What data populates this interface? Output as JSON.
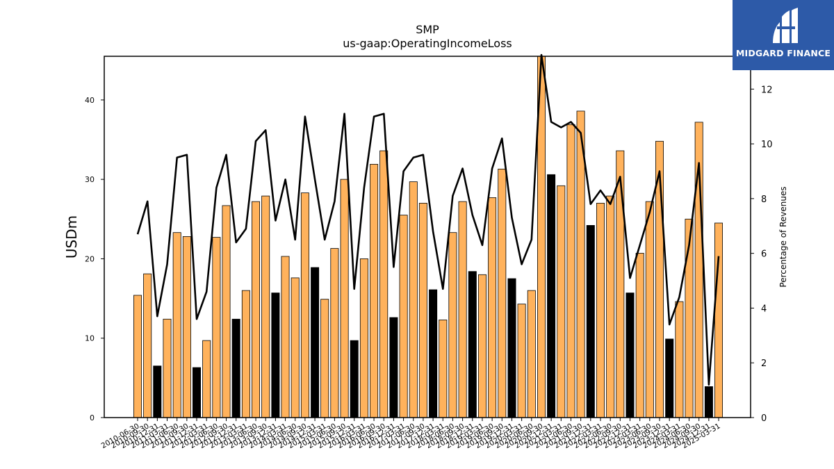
{
  "chart_data": {
    "type": "bar",
    "title": "SMP",
    "subtitle": "us-gaap:OperatingIncomeLoss",
    "ylabel": "USDm",
    "y2label": "Percentage of Revenues",
    "ylim": [
      0,
      45.5
    ],
    "y2lim": [
      0,
      13.2
    ],
    "yticks": [
      0,
      10,
      20,
      30,
      40
    ],
    "y2ticks": [
      0,
      2,
      4,
      6,
      8,
      10,
      12
    ],
    "colors": {
      "bar": "#ffb25c",
      "bar_q4": "#000000",
      "line": "#000000"
    },
    "categories": [
      "2010-06-30",
      "2010-09-30",
      "2010-12-31",
      "2011-03-31",
      "2011-06-30",
      "2011-09-30",
      "2011-12-31",
      "2012-03-31",
      "2012-06-30",
      "2012-09-30",
      "2012-12-31",
      "2013-03-31",
      "2013-06-30",
      "2013-09-30",
      "2013-12-31",
      "2014-03-31",
      "2014-06-30",
      "2014-09-30",
      "2014-12-31",
      "2015-03-31",
      "2015-06-30",
      "2015-09-30",
      "2015-12-31",
      "2016-03-31",
      "2016-06-30",
      "2016-09-30",
      "2016-12-31",
      "2017-03-31",
      "2017-06-30",
      "2017-09-30",
      "2017-12-31",
      "2018-03-31",
      "2018-06-30",
      "2018-09-30",
      "2018-12-31",
      "2019-03-31",
      "2019-06-30",
      "2019-09-30",
      "2019-12-31",
      "2020-03-31",
      "2020-06-30",
      "2020-09-30",
      "2020-12-31",
      "2021-03-31",
      "2021-06-30",
      "2021-09-30",
      "2021-12-31",
      "2022-03-31",
      "2022-06-30",
      "2022-09-30",
      "2022-12-31",
      "2023-03-31",
      "2023-06-30",
      "2023-09-30",
      "2023-12-31",
      "2024-03-31",
      "2024-06-30",
      "2024-09-30",
      "2024-12-31",
      "2025-03-31"
    ],
    "series": [
      {
        "type": "bar",
        "values": [
          15.4,
          18.1,
          6.5,
          12.4,
          23.3,
          22.8,
          6.3,
          9.7,
          22.7,
          26.7,
          12.4,
          16.0,
          27.2,
          27.9,
          15.7,
          20.3,
          17.6,
          28.3,
          18.9,
          14.9,
          21.3,
          30.0,
          9.7,
          20.0,
          31.9,
          33.6,
          12.6,
          25.5,
          29.7,
          27.0,
          16.1,
          12.3,
          23.3,
          27.2,
          18.4,
          18.0,
          27.7,
          31.3,
          17.5,
          14.3,
          16.0,
          45.5,
          30.6,
          29.2,
          36.9,
          38.6,
          24.2,
          27.0,
          27.9,
          33.6,
          15.7,
          20.7,
          27.2,
          34.8,
          9.9,
          14.6,
          25.0,
          37.2,
          3.9,
          24.5
        ]
      },
      {
        "type": "line",
        "values": [
          6.7,
          7.9,
          3.7,
          5.6,
          9.5,
          9.6,
          3.6,
          4.6,
          8.4,
          9.6,
          6.4,
          6.9,
          10.1,
          10.5,
          7.2,
          8.7,
          6.5,
          11.0,
          8.7,
          6.5,
          7.9,
          11.1,
          4.7,
          8.4,
          11.0,
          11.1,
          5.5,
          9.0,
          9.5,
          9.6,
          6.8,
          4.7,
          8.1,
          9.1,
          7.4,
          6.3,
          9.1,
          10.2,
          7.3,
          5.6,
          6.5,
          13.5,
          10.8,
          10.6,
          10.8,
          10.4,
          7.8,
          8.3,
          7.8,
          8.8,
          5.1,
          6.3,
          7.5,
          9.0,
          3.4,
          4.4,
          6.3,
          9.3,
          1.2,
          5.9
        ]
      }
    ]
  },
  "logo": {
    "text": "MIDGARD FINANCE"
  }
}
